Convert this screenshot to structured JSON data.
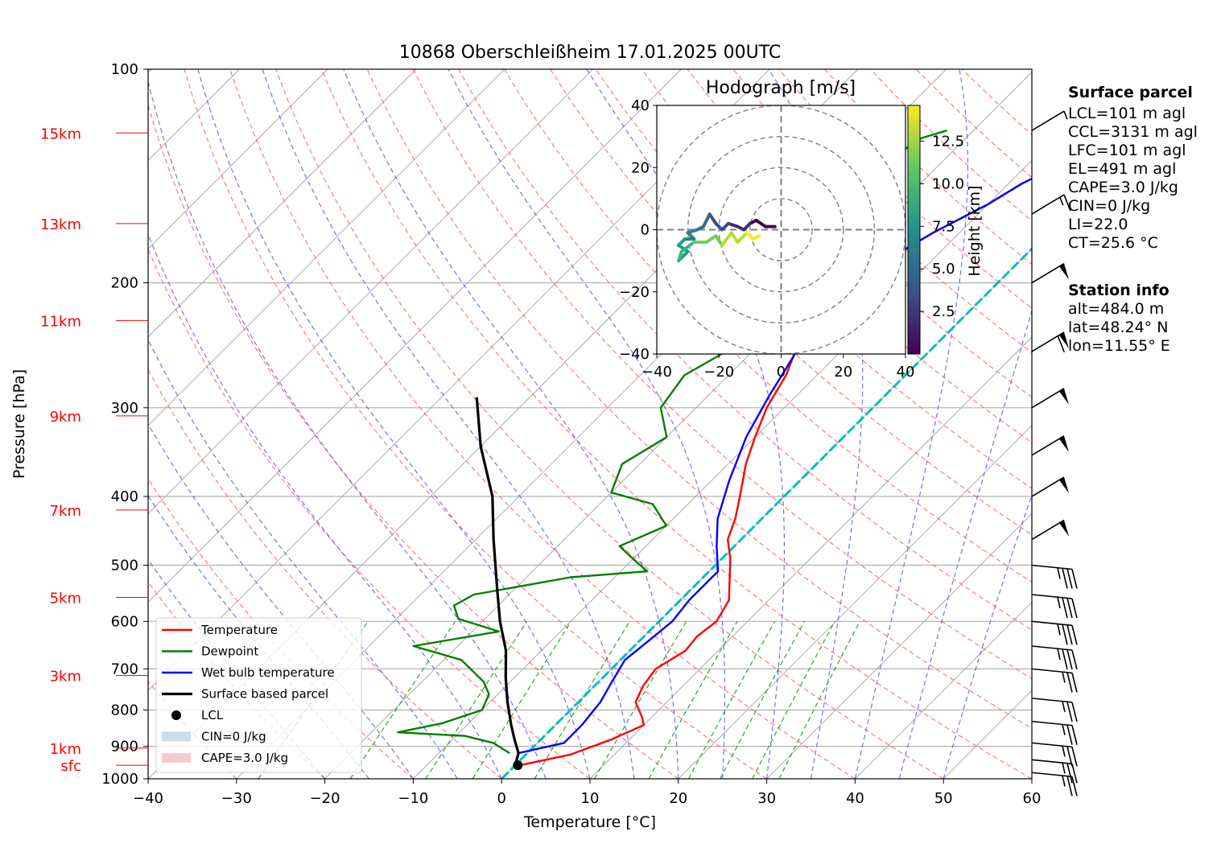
{
  "chart_data": {
    "type": "line",
    "title": "10868 Oberschleißheim 17.01.2025 00UTC",
    "xlabel": "Temperature [°C]",
    "ylabel": "Pressure [hPa]",
    "xlim": [
      -40,
      60
    ],
    "ylim": [
      1000,
      100
    ],
    "y_scale": "log",
    "grid": true,
    "x_ticks": [
      "−40",
      "−30",
      "−20",
      "−10",
      "0",
      "10",
      "20",
      "30",
      "40",
      "50",
      "60"
    ],
    "y_ticks": [
      "100",
      "200",
      "300",
      "400",
      "500",
      "600",
      "700",
      "800",
      "900",
      "1000"
    ],
    "height_labels": [
      {
        "label": "15km",
        "p": 123
      },
      {
        "label": "13km",
        "p": 165
      },
      {
        "label": "11km",
        "p": 226
      },
      {
        "label": "9km",
        "p": 308
      },
      {
        "label": "7km",
        "p": 418
      },
      {
        "label": "5km",
        "p": 555
      },
      {
        "label": "3km",
        "p": 715
      },
      {
        "label": "1km",
        "p": 905
      },
      {
        "label": "sfc",
        "p": 957
      }
    ],
    "series": [
      {
        "name": "Temperature",
        "color": "#ff0000",
        "points": [
          [
            0.5,
            957
          ],
          [
            5,
            925
          ],
          [
            8,
            880
          ],
          [
            10,
            840
          ],
          [
            9,
            820
          ],
          [
            6.5,
            780
          ],
          [
            5.5,
            740
          ],
          [
            5,
            700
          ],
          [
            6.3,
            660
          ],
          [
            6,
            630
          ],
          [
            6.5,
            600
          ],
          [
            5.5,
            560
          ],
          [
            3,
            520
          ],
          [
            1,
            490
          ],
          [
            -1.5,
            460
          ],
          [
            -3,
            430
          ],
          [
            -5,
            400
          ],
          [
            -8,
            360
          ],
          [
            -10,
            330
          ],
          [
            -12,
            300
          ],
          [
            -13.5,
            270
          ],
          [
            -16,
            240
          ],
          [
            -17,
            220
          ],
          [
            -17.5,
            205
          ],
          [
            -17,
            195
          ],
          [
            -15,
            185
          ],
          [
            -13,
            170
          ],
          [
            -10,
            155
          ],
          [
            -8.5,
            145
          ],
          [
            -6,
            135
          ],
          [
            -4,
            125
          ],
          [
            -3,
            122
          ]
        ]
      },
      {
        "name": "Dewpoint",
        "color": "#008000",
        "points": [
          [
            -2,
            920
          ],
          [
            -5,
            890
          ],
          [
            -9,
            870
          ],
          [
            -17,
            860
          ],
          [
            -13,
            835
          ],
          [
            -10,
            800
          ],
          [
            -11,
            760
          ],
          [
            -13,
            730
          ],
          [
            -18,
            680
          ],
          [
            -25,
            650
          ],
          [
            -17,
            620
          ],
          [
            -23,
            595
          ],
          [
            -25,
            570
          ],
          [
            -24,
            550
          ],
          [
            -15,
            520
          ],
          [
            -7,
            510
          ],
          [
            -10,
            490
          ],
          [
            -13,
            470
          ],
          [
            -10,
            440
          ],
          [
            -14,
            410
          ],
          [
            -20,
            395
          ],
          [
            -22,
            360
          ],
          [
            -20,
            330
          ],
          [
            -24,
            300
          ],
          [
            -25,
            270
          ],
          [
            -23,
            250
          ],
          [
            -25,
            230
          ],
          [
            -24,
            210
          ],
          [
            -23,
            190
          ],
          [
            -29,
            175
          ],
          [
            -31,
            165
          ],
          [
            -30,
            155
          ],
          [
            -27,
            140
          ],
          [
            -25,
            125
          ],
          [
            -23,
            122
          ]
        ]
      },
      {
        "name": "Wet bulb temperature",
        "color": "#0000ff",
        "points": [
          [
            -1,
            920
          ],
          [
            3,
            890
          ],
          [
            3,
            840
          ],
          [
            2.5,
            780
          ],
          [
            1.5,
            730
          ],
          [
            0.5,
            680
          ],
          [
            1,
            640
          ],
          [
            1.5,
            600
          ],
          [
            1,
            560
          ],
          [
            1,
            510
          ],
          [
            -2,
            470
          ],
          [
            -5,
            430
          ],
          [
            -8,
            380
          ],
          [
            -11,
            330
          ],
          [
            -13,
            290
          ],
          [
            -15,
            250
          ],
          [
            -16.5,
            220
          ],
          [
            -17.5,
            205
          ],
          [
            -17,
            195
          ],
          [
            -15,
            185
          ],
          [
            -13,
            170
          ],
          [
            -10,
            155
          ],
          [
            -8.5,
            145
          ],
          [
            -6,
            135
          ],
          [
            -4,
            125
          ],
          [
            -3.5,
            122
          ]
        ]
      },
      {
        "name": "Surface based parcel",
        "color": "#000000",
        "points": [
          [
            0,
            957
          ],
          [
            -1,
            920
          ],
          [
            -3,
            880
          ],
          [
            -5,
            840
          ],
          [
            -8,
            780
          ],
          [
            -11,
            720
          ],
          [
            -14,
            660
          ],
          [
            -18,
            600
          ],
          [
            -22,
            540
          ],
          [
            -28,
            460
          ],
          [
            -33,
            400
          ],
          [
            -40,
            340
          ],
          [
            -46,
            290
          ]
        ]
      }
    ],
    "legend": {
      "placement": "lower-left",
      "entries": [
        "Temperature",
        "Dewpoint",
        "Wet bulb temperature",
        "Surface based parcel",
        "LCL",
        "CIN=0 J/kg",
        "CAPE=3.0 J/kg"
      ]
    },
    "lcl": {
      "t": 0.3,
      "p": 957
    },
    "hodograph": {
      "title": "Hodograph [m/s]",
      "ticks": [
        "−40",
        "−20",
        "0",
        "20",
        "40"
      ],
      "rings": [
        10,
        20,
        30,
        40
      ],
      "colorbar_label": "Height [km]",
      "colorbar_ticks": [
        "2.5",
        "5.0",
        "7.5",
        "10.0",
        "12.5"
      ],
      "points": [
        [
          -2,
          1
        ],
        [
          -5,
          1
        ],
        [
          -8,
          3
        ],
        [
          -10,
          2
        ],
        [
          -12,
          0
        ],
        [
          -14,
          1
        ],
        [
          -17,
          2
        ],
        [
          -19,
          0
        ],
        [
          -21,
          2
        ],
        [
          -23,
          5
        ],
        [
          -25,
          1
        ],
        [
          -27,
          0
        ],
        [
          -30,
          -1
        ],
        [
          -28,
          -3
        ],
        [
          -31,
          -3
        ],
        [
          -33,
          -5
        ],
        [
          -30,
          -7
        ],
        [
          -33,
          -10
        ],
        [
          -32,
          -7
        ],
        [
          -28,
          -4
        ],
        [
          -24,
          -4
        ],
        [
          -21,
          -2
        ],
        [
          -19,
          -5
        ],
        [
          -16,
          -1
        ],
        [
          -14,
          -4
        ],
        [
          -11,
          -1
        ],
        [
          -9,
          -3
        ],
        [
          -7,
          -2
        ]
      ]
    }
  },
  "surface_parcel": {
    "heading": "Surface parcel",
    "lines": [
      "LCL=101 m agl",
      "CCL=3131 m agl",
      "LFC=101 m agl",
      "EL=491 m agl",
      "CAPE=3.0 J/kg",
      "CIN=0 J/kg",
      "LI=22.0",
      "CT=25.6 °C"
    ]
  },
  "station_info": {
    "heading": "Station info",
    "lines": [
      "alt=484.0 m",
      "lat=48.24° N",
      "lon=11.55° E"
    ]
  },
  "wind_barbs": [
    {
      "p": 122,
      "speed": 5
    },
    {
      "p": 160,
      "speed": 15
    },
    {
      "p": 200,
      "speed": 50
    },
    {
      "p": 250,
      "speed": 60
    },
    {
      "p": 300,
      "speed": 50
    },
    {
      "p": 350,
      "speed": 50
    },
    {
      "p": 400,
      "speed": 50
    },
    {
      "p": 460,
      "speed": 50
    },
    {
      "p": 500,
      "speed": 35
    },
    {
      "p": 550,
      "speed": 35
    },
    {
      "p": 600,
      "speed": 35
    },
    {
      "p": 650,
      "speed": 35
    },
    {
      "p": 700,
      "speed": 25
    },
    {
      "p": 770,
      "speed": 25
    },
    {
      "p": 830,
      "speed": 25
    },
    {
      "p": 890,
      "speed": 25
    },
    {
      "p": 940,
      "speed": 25
    },
    {
      "p": 980,
      "speed": 25
    }
  ]
}
